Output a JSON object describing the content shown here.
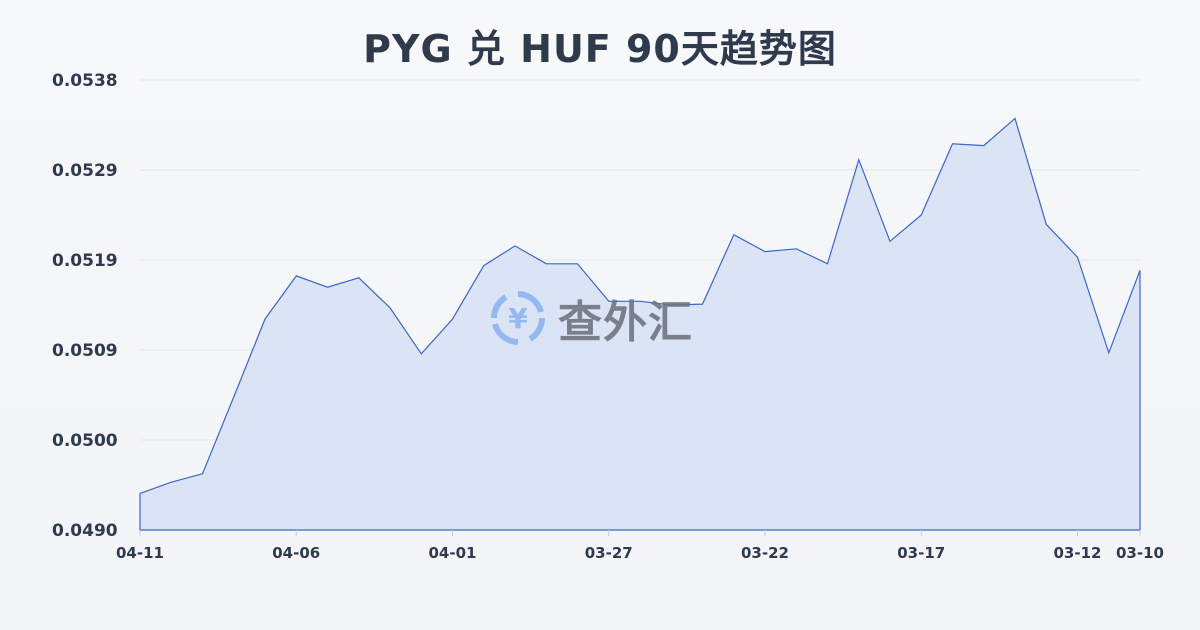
{
  "chart_data": {
    "type": "area",
    "title": "PYG 兑 HUF 90天趋势图",
    "xlabel": "",
    "ylabel": "",
    "x": [
      "04-11",
      "04-10",
      "04-09",
      "04-08",
      "04-07",
      "04-06",
      "04-05",
      "04-04",
      "04-03",
      "04-02",
      "04-01",
      "03-31",
      "03-30",
      "03-29",
      "03-28",
      "03-27",
      "03-26",
      "03-25",
      "03-24",
      "03-23",
      "03-22",
      "03-21",
      "03-20",
      "03-19",
      "03-18",
      "03-17",
      "03-16",
      "03-15",
      "03-14",
      "03-13",
      "03-12",
      "03-11",
      "03-10"
    ],
    "values": [
      0.04939,
      0.04951,
      0.0496,
      0.05042,
      0.05125,
      0.05171,
      0.05159,
      0.05169,
      0.05137,
      0.05088,
      0.05125,
      0.05182,
      0.05203,
      0.05184,
      0.05184,
      0.05144,
      0.05144,
      0.0514,
      0.05141,
      0.05215,
      0.05197,
      0.052,
      0.05184,
      0.05295,
      0.05208,
      0.05236,
      0.05312,
      0.0531,
      0.05339,
      0.05226,
      0.05191,
      0.05089,
      0.05177
    ],
    "ylim": [
      0.049,
      0.0538
    ],
    "y_ticks": [
      "0.0490",
      "0.0500",
      "0.0509",
      "0.0519",
      "0.0529",
      "0.0538"
    ],
    "x_ticks": [
      "04-11",
      "04-06",
      "04-01",
      "03-27",
      "03-22",
      "03-17",
      "03-12",
      "03-10"
    ],
    "grid": true,
    "legend": "none",
    "colors": {
      "line": "#3a66c8",
      "fill": "#d6e0f5",
      "grid": "#e3e6ec",
      "text": "#2f3a4c"
    }
  },
  "watermark": {
    "text": "查外汇",
    "icon": "yen-exchange-icon",
    "icon_color": "#8db4f0"
  }
}
